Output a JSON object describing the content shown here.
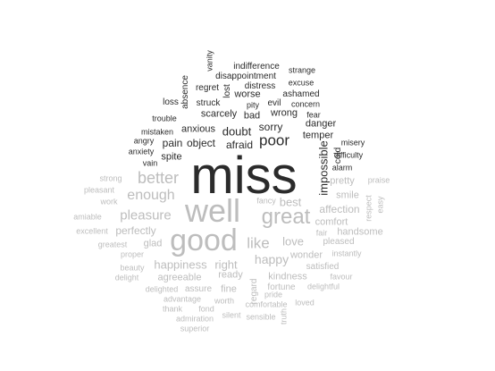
{
  "colors": {
    "negative": "#2b2b2b",
    "positive": "#bdbdbd"
  },
  "words": [
    {
      "text": "miss",
      "sentiment": "negative"
    },
    {
      "text": "poor",
      "sentiment": "negative"
    },
    {
      "text": "doubt",
      "sentiment": "negative"
    },
    {
      "text": "afraid",
      "sentiment": "negative"
    },
    {
      "text": "object",
      "sentiment": "negative"
    },
    {
      "text": "pain",
      "sentiment": "negative"
    },
    {
      "text": "sorry",
      "sentiment": "negative"
    },
    {
      "text": "impossible",
      "sentiment": "negative"
    },
    {
      "text": "anxious",
      "sentiment": "negative"
    },
    {
      "text": "scarcely",
      "sentiment": "negative"
    },
    {
      "text": "bad",
      "sentiment": "negative"
    },
    {
      "text": "wrong",
      "sentiment": "negative"
    },
    {
      "text": "danger",
      "sentiment": "negative"
    },
    {
      "text": "temper",
      "sentiment": "negative"
    },
    {
      "text": "regret",
      "sentiment": "negative"
    },
    {
      "text": "worse",
      "sentiment": "negative"
    },
    {
      "text": "distress",
      "sentiment": "negative"
    },
    {
      "text": "evil",
      "sentiment": "negative"
    },
    {
      "text": "lost",
      "sentiment": "negative"
    },
    {
      "text": "absence",
      "sentiment": "negative"
    },
    {
      "text": "loss",
      "sentiment": "negative"
    },
    {
      "text": "struck",
      "sentiment": "negative"
    },
    {
      "text": "pity",
      "sentiment": "negative"
    },
    {
      "text": "concern",
      "sentiment": "negative"
    },
    {
      "text": "ashamed",
      "sentiment": "negative"
    },
    {
      "text": "excuse",
      "sentiment": "negative"
    },
    {
      "text": "strange",
      "sentiment": "negative"
    },
    {
      "text": "indifference",
      "sentiment": "negative"
    },
    {
      "text": "disappointment",
      "sentiment": "negative"
    },
    {
      "text": "vanity",
      "sentiment": "negative"
    },
    {
      "text": "fear",
      "sentiment": "negative"
    },
    {
      "text": "trouble",
      "sentiment": "negative"
    },
    {
      "text": "mistaken",
      "sentiment": "negative"
    },
    {
      "text": "angry",
      "sentiment": "negative"
    },
    {
      "text": "anxiety",
      "sentiment": "negative"
    },
    {
      "text": "vain",
      "sentiment": "negative"
    },
    {
      "text": "spite",
      "sentiment": "negative"
    },
    {
      "text": "cold",
      "sentiment": "negative"
    },
    {
      "text": "misery",
      "sentiment": "negative"
    },
    {
      "text": "difficulty",
      "sentiment": "negative"
    },
    {
      "text": "alarm",
      "sentiment": "negative"
    },
    {
      "text": "well",
      "sentiment": "positive"
    },
    {
      "text": "good",
      "sentiment": "positive"
    },
    {
      "text": "great",
      "sentiment": "positive"
    },
    {
      "text": "better",
      "sentiment": "positive"
    },
    {
      "text": "enough",
      "sentiment": "positive"
    },
    {
      "text": "pleasure",
      "sentiment": "positive"
    },
    {
      "text": "like",
      "sentiment": "positive"
    },
    {
      "text": "love",
      "sentiment": "positive"
    },
    {
      "text": "happy",
      "sentiment": "positive"
    },
    {
      "text": "happiness",
      "sentiment": "positive"
    },
    {
      "text": "right",
      "sentiment": "positive"
    },
    {
      "text": "best",
      "sentiment": "positive"
    },
    {
      "text": "affection",
      "sentiment": "positive"
    },
    {
      "text": "comfort",
      "sentiment": "positive"
    },
    {
      "text": "perfectly",
      "sentiment": "positive"
    },
    {
      "text": "glad",
      "sentiment": "positive"
    },
    {
      "text": "pretty",
      "sentiment": "positive"
    },
    {
      "text": "smile",
      "sentiment": "positive"
    },
    {
      "text": "handsome",
      "sentiment": "positive"
    },
    {
      "text": "fair",
      "sentiment": "positive"
    },
    {
      "text": "pleased",
      "sentiment": "positive"
    },
    {
      "text": "fancy",
      "sentiment": "positive"
    },
    {
      "text": "wonder",
      "sentiment": "positive"
    },
    {
      "text": "instantly",
      "sentiment": "positive"
    },
    {
      "text": "satisfied",
      "sentiment": "positive"
    },
    {
      "text": "kindness",
      "sentiment": "positive"
    },
    {
      "text": "favour",
      "sentiment": "positive"
    },
    {
      "text": "fortune",
      "sentiment": "positive"
    },
    {
      "text": "delightful",
      "sentiment": "positive"
    },
    {
      "text": "agreeable",
      "sentiment": "positive"
    },
    {
      "text": "ready",
      "sentiment": "positive"
    },
    {
      "text": "assure",
      "sentiment": "positive"
    },
    {
      "text": "fine",
      "sentiment": "positive"
    },
    {
      "text": "delighted",
      "sentiment": "positive"
    },
    {
      "text": "advantage",
      "sentiment": "positive"
    },
    {
      "text": "worth",
      "sentiment": "positive"
    },
    {
      "text": "comfortable",
      "sentiment": "positive"
    },
    {
      "text": "loved",
      "sentiment": "positive"
    },
    {
      "text": "thank",
      "sentiment": "positive"
    },
    {
      "text": "fond",
      "sentiment": "positive"
    },
    {
      "text": "admiration",
      "sentiment": "positive"
    },
    {
      "text": "silent",
      "sentiment": "positive"
    },
    {
      "text": "sensible",
      "sentiment": "positive"
    },
    {
      "text": "superior",
      "sentiment": "positive"
    },
    {
      "text": "regard",
      "sentiment": "positive"
    },
    {
      "text": "truth",
      "sentiment": "positive"
    },
    {
      "text": "pride",
      "sentiment": "positive"
    },
    {
      "text": "beauty",
      "sentiment": "positive"
    },
    {
      "text": "delight",
      "sentiment": "positive"
    },
    {
      "text": "proper",
      "sentiment": "positive"
    },
    {
      "text": "greatest",
      "sentiment": "positive"
    },
    {
      "text": "excellent",
      "sentiment": "positive"
    },
    {
      "text": "amiable",
      "sentiment": "positive"
    },
    {
      "text": "pleasant",
      "sentiment": "positive"
    },
    {
      "text": "work",
      "sentiment": "positive"
    },
    {
      "text": "strong",
      "sentiment": "positive"
    },
    {
      "text": "praise",
      "sentiment": "positive"
    },
    {
      "text": "respect",
      "sentiment": "positive"
    },
    {
      "text": "easy",
      "sentiment": "positive"
    }
  ]
}
